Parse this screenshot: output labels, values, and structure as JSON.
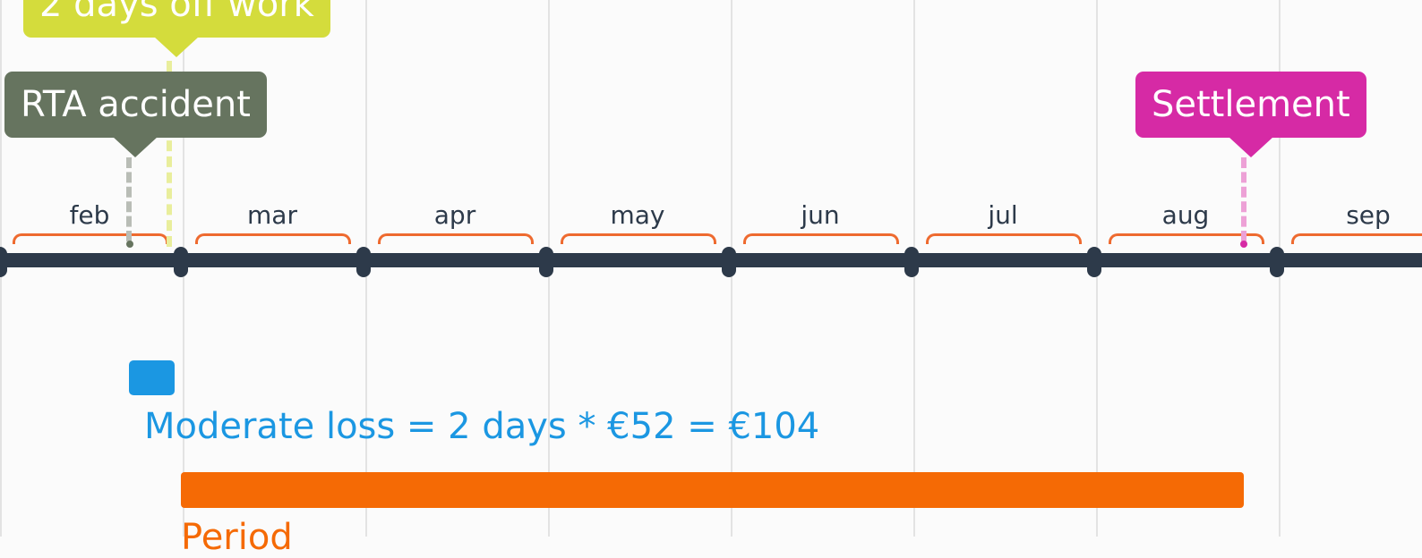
{
  "timeline": {
    "months": [
      "feb",
      "mar",
      "apr",
      "may",
      "jun",
      "jul",
      "aug",
      "sep"
    ],
    "axis_color": "#2d3a4a",
    "brace_color": "#ee6a2f"
  },
  "events": [
    {
      "label": "2 days off work",
      "color": "#d4dc3c",
      "stem_color": "#e9ee9c"
    },
    {
      "label": "RTA accident",
      "color": "#66745f",
      "stem_color": "#b9bdb6"
    },
    {
      "label": "Settlement",
      "color": "#d62aa5",
      "stem_color": "#eda1d6"
    }
  ],
  "loss": {
    "swatch_color": "#1b97e2",
    "formula": "Moderate loss = 2 days * €52 = €104"
  },
  "period_bar": {
    "color": "#f56a05",
    "caption": "Period"
  }
}
